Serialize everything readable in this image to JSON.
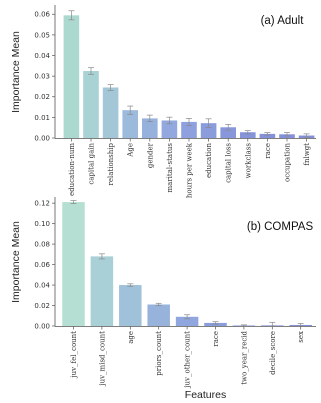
{
  "chart_data": [
    {
      "type": "bar",
      "title": "(a) Adult",
      "ylabel": "Importance Mean",
      "xlabel": "",
      "ylim": [
        0,
        0.0645
      ],
      "yticks": [
        "0.00",
        "0.01",
        "0.02",
        "0.03",
        "0.04",
        "0.05",
        "0.06"
      ],
      "categories": [
        "education-num",
        "capital gain",
        "relationship",
        "Age",
        "gender",
        "marital-status",
        "hours per week",
        "education",
        "capital loss",
        "workclass",
        "race",
        "occupation",
        "fnlwgt"
      ],
      "values": [
        0.0595,
        0.0325,
        0.0245,
        0.0135,
        0.0095,
        0.0085,
        0.0078,
        0.0072,
        0.0052,
        0.0028,
        0.002,
        0.0018,
        0.0012
      ],
      "errors": [
        0.0022,
        0.0016,
        0.0014,
        0.002,
        0.0016,
        0.0016,
        0.0017,
        0.0021,
        0.0014,
        0.0008,
        0.0006,
        0.0008,
        0.0008
      ],
      "colors": [
        "#acd9cf",
        "#a9d2d4",
        "#a3c7d7",
        "#9cbadb",
        "#97b1dd",
        "#92a8de",
        "#8ea1de",
        "#8b9cdd",
        "#8897dc",
        "#8694dc",
        "#8592db",
        "#8490db",
        "#838fdb"
      ],
      "grid": false
    },
    {
      "type": "bar",
      "title": "(b) COMPAS",
      "ylabel": "Importance Mean",
      "xlabel": "Features",
      "ylim": [
        0,
        0.126
      ],
      "yticks": [
        "0.00",
        "0.02",
        "0.04",
        "0.06",
        "0.08",
        "0.10",
        "0.12"
      ],
      "categories": [
        "juv_fel_count",
        "juv_misd_count",
        "age",
        "priors_count",
        "juv_other_count",
        "race",
        "two_year_recid",
        "decile_score",
        "sex"
      ],
      "values": [
        0.121,
        0.068,
        0.04,
        0.021,
        0.009,
        0.003,
        0.0005,
        0.0006,
        0.001
      ],
      "errors": [
        0.0015,
        0.0025,
        0.0012,
        0.0012,
        0.002,
        0.0012,
        0.0006,
        0.003,
        0.0016
      ],
      "colors": [
        "#b6dfd3",
        "#a9d0d6",
        "#9fc2da",
        "#97b3dc",
        "#8fa6de",
        "#899cdc",
        "#8594db",
        "#8391db",
        "#828fdb"
      ],
      "grid": false
    }
  ]
}
